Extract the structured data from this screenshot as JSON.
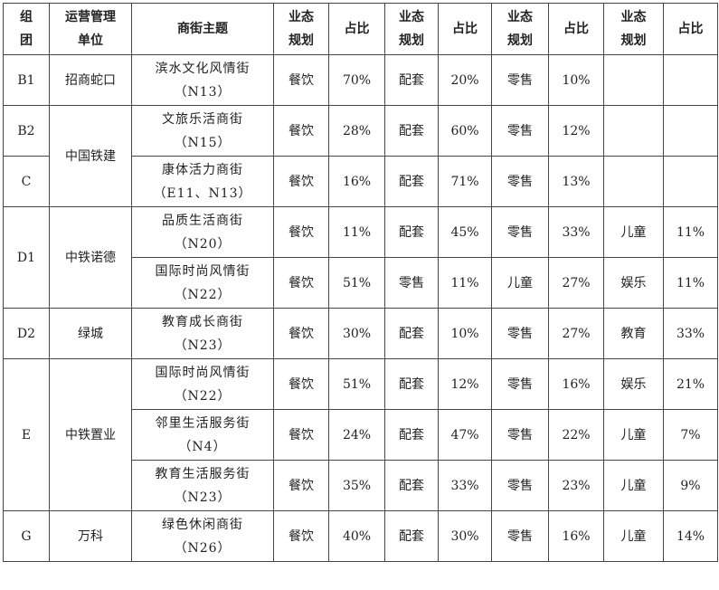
{
  "headers": {
    "group": "组团",
    "operator": "运营管理单位",
    "theme": "商街主题",
    "plan1": "业态规划",
    "ratio1": "占比",
    "plan2": "业态规划",
    "ratio2": "占比",
    "plan3": "业态规划",
    "ratio3": "占比",
    "plan4": "业态规划",
    "ratio4": "占比"
  },
  "groups": [
    {
      "group": "B1",
      "operator": "招商蛇口"
    },
    {
      "group": "B2",
      "operator": "中国铁建"
    },
    {
      "group": "C"
    },
    {
      "group": "D1",
      "operator": "中铁诺德"
    },
    {
      "group": "D2",
      "operator": "绿城"
    },
    {
      "group": "E",
      "operator": "中铁置业"
    },
    {
      "group": "G",
      "operator": "万科"
    }
  ],
  "rows": [
    {
      "theme": "滨水文化风情街",
      "code": "（N13）",
      "p1": "餐饮",
      "r1": "70%",
      "p2": "配套",
      "r2": "20%",
      "p3": "零售",
      "r3": "10%",
      "p4": "",
      "r4": ""
    },
    {
      "theme": "文旅乐活商街",
      "code": "（N15）",
      "p1": "餐饮",
      "r1": "28%",
      "p2": "配套",
      "r2": "60%",
      "p3": "零售",
      "r3": "12%",
      "p4": "",
      "r4": ""
    },
    {
      "theme": "康体活力商街",
      "code": "（E11、N13）",
      "p1": "餐饮",
      "r1": "16%",
      "p2": "配套",
      "r2": "71%",
      "p3": "零售",
      "r3": "13%",
      "p4": "",
      "r4": ""
    },
    {
      "theme": "品质生活商街",
      "code": "（N20）",
      "p1": "餐饮",
      "r1": "11%",
      "p2": "配套",
      "r2": "45%",
      "p3": "零售",
      "r3": "33%",
      "p4": "儿童",
      "r4": "11%"
    },
    {
      "theme": "国际时尚风情街",
      "code": "（N22）",
      "p1": "餐饮",
      "r1": "51%",
      "p2": "零售",
      "r2": "11%",
      "p3": "儿童",
      "r3": "27%",
      "p4": "娱乐",
      "r4": "11%"
    },
    {
      "theme": "教育成长商街",
      "code": "（N23）",
      "p1": "餐饮",
      "r1": "30%",
      "p2": "配套",
      "r2": "10%",
      "p3": "零售",
      "r3": "27%",
      "p4": "教育",
      "r4": "33%"
    },
    {
      "theme": "国际时尚风情街",
      "code": "（N22）",
      "p1": "餐饮",
      "r1": "51%",
      "p2": "配套",
      "r2": "12%",
      "p3": "零售",
      "r3": "16%",
      "p4": "娱乐",
      "r4": "21%"
    },
    {
      "theme": "邻里生活服务街",
      "code": "（N4）",
      "p1": "餐饮",
      "r1": "24%",
      "p2": "配套",
      "r2": "47%",
      "p3": "零售",
      "r3": "22%",
      "p4": "儿童",
      "r4": "7%"
    },
    {
      "theme": "教育生活服务街",
      "code": "（N23）",
      "p1": "餐饮",
      "r1": "35%",
      "p2": "配套",
      "r2": "33%",
      "p3": "零售",
      "r3": "23%",
      "p4": "儿童",
      "r4": "9%"
    },
    {
      "theme": "绿色休闲商街",
      "code": "（N26）",
      "p1": "餐饮",
      "r1": "40%",
      "p2": "配套",
      "r2": "30%",
      "p3": "零售",
      "r3": "16%",
      "p4": "儿童",
      "r4": "14%"
    }
  ]
}
